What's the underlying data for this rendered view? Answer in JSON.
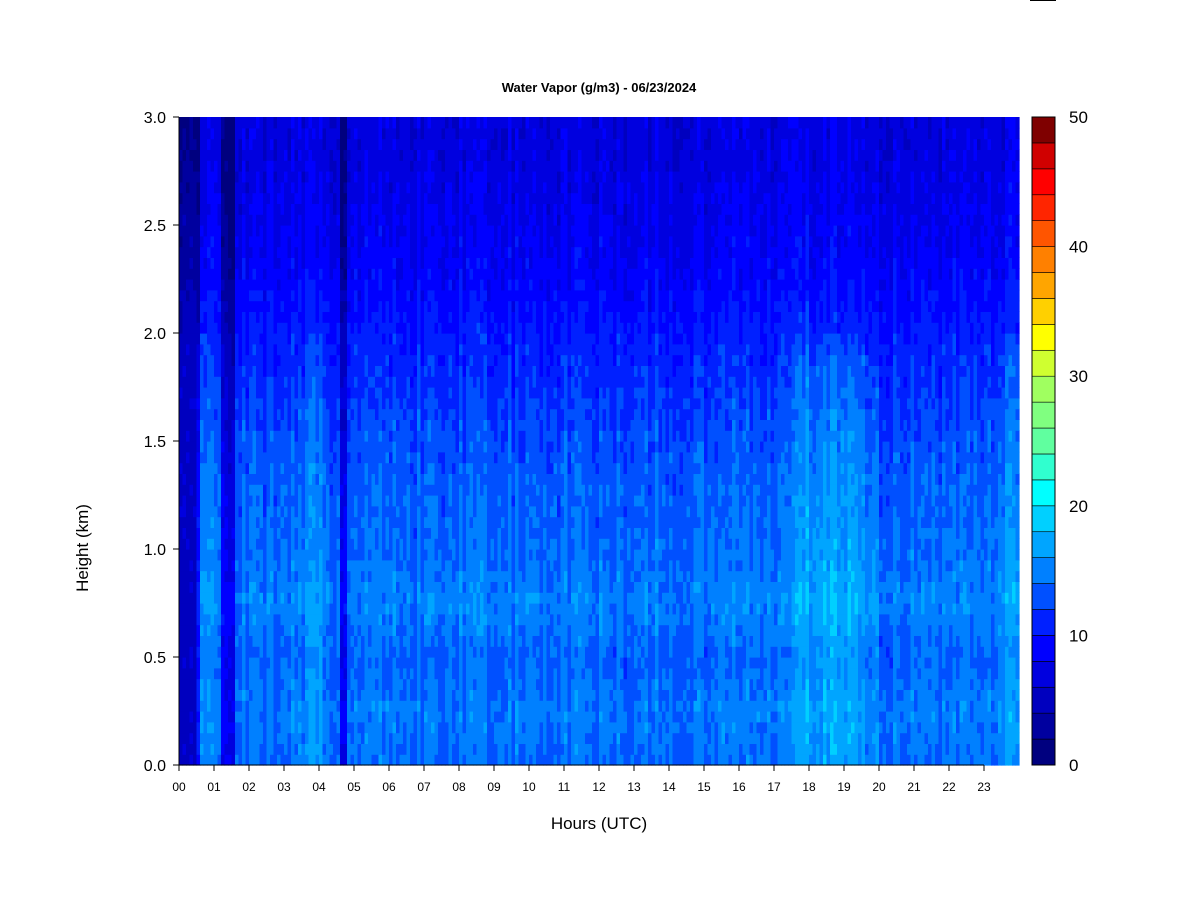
{
  "chart_data": {
    "type": "heatmap",
    "title": "Water Vapor (g/m3) - 06/23/2024",
    "xlabel": "Hours (UTC)",
    "ylabel": "Height (km)",
    "xlim": [
      0,
      24
    ],
    "ylim": [
      0,
      3
    ],
    "x_ticks": [
      "00",
      "01",
      "02",
      "03",
      "04",
      "05",
      "06",
      "07",
      "08",
      "09",
      "10",
      "11",
      "12",
      "13",
      "14",
      "15",
      "16",
      "17",
      "18",
      "19",
      "20",
      "21",
      "22",
      "23"
    ],
    "y_ticks": [
      "0.0",
      "0.5",
      "1.0",
      "1.5",
      "2.0",
      "2.5",
      "3.0"
    ],
    "colorbar": {
      "min": 0,
      "max": 50,
      "step": 2.5,
      "ticks": [
        "0",
        "10",
        "20",
        "30",
        "40",
        "50"
      ],
      "colors": [
        "#00007F",
        "#00009F",
        "#0000BF",
        "#0000DF",
        "#0000FF",
        "#0020FF",
        "#0050FF",
        "#0080FF",
        "#00A5FF",
        "#00D0FF",
        "#00FFFF",
        "#30FFCF",
        "#60FF9F",
        "#80FF80",
        "#A0FF60",
        "#CFFF30",
        "#FFFF00",
        "#FFD000",
        "#FFA500",
        "#FF8000",
        "#FF5500",
        "#FF2500",
        "#FF0000",
        "#D00000",
        "#7F0000"
      ]
    },
    "profile": {
      "heights_km": [
        0.0,
        0.25,
        0.5,
        0.75,
        1.0,
        1.25,
        1.5,
        1.75,
        2.0,
        2.25,
        2.5,
        2.75,
        3.0
      ],
      "typical_values": [
        17.5,
        18.5,
        17.0,
        19.0,
        17.5,
        17.0,
        16.0,
        14.5,
        13.0,
        11.0,
        10.0,
        9.0,
        8.5
      ]
    },
    "dry_hours": [
      0.0,
      0.1,
      0.2,
      0.3,
      0.4,
      0.5,
      1.3,
      1.5,
      4.7
    ],
    "moist_hours": [
      0.55,
      0.65,
      3.9,
      17.9,
      18.2,
      18.5,
      18.9,
      19.3,
      23.6,
      23.8
    ]
  }
}
